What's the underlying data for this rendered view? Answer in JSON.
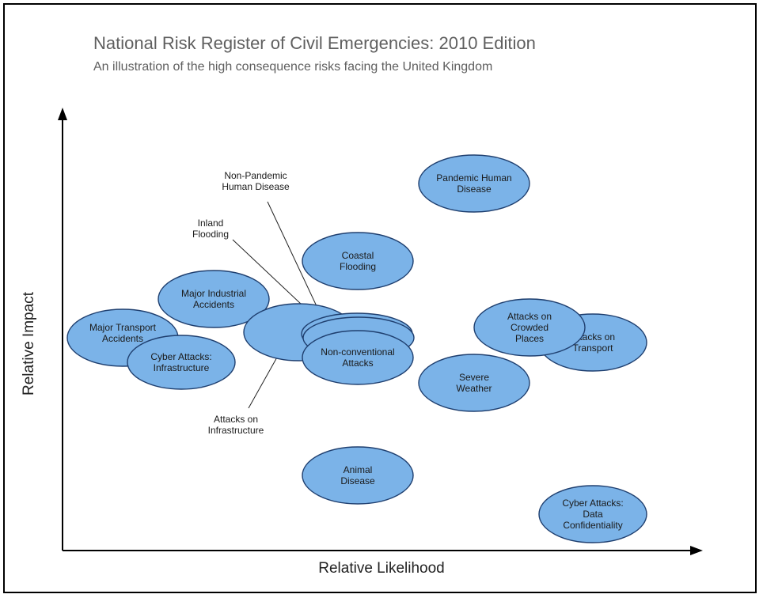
{
  "title": "National Risk Register of Civil Emergencies: 2010 Edition",
  "subtitle": "An illustration of the high consequence risks facing the United Kingdom",
  "axes": {
    "x": "Relative Likelihood",
    "y": "Relative Impact"
  },
  "colors": {
    "bubble_fill": "#7bb3e8",
    "bubble_stroke": "#1f3f6f",
    "text": "#1a1a1a"
  },
  "risks": [
    {
      "id": "pandemic-human-disease",
      "label": [
        "Pandemic Human",
        "Disease"
      ]
    },
    {
      "id": "coastal-flooding",
      "label": [
        "Coastal",
        "Flooding"
      ]
    },
    {
      "id": "major-industrial-accidents",
      "label": [
        "Major Industrial",
        "Accidents"
      ]
    },
    {
      "id": "major-transport-accidents",
      "label": [
        "Major Transport",
        "Accidents"
      ]
    },
    {
      "id": "cyber-attacks-infrastructure",
      "label": [
        "Cyber Attacks:",
        "Infrastructure"
      ]
    },
    {
      "id": "attacks-on-infrastructure",
      "label": []
    },
    {
      "id": "non-pandemic-human-disease",
      "label": []
    },
    {
      "id": "inland-flooding",
      "label": []
    },
    {
      "id": "non-conventional-attacks",
      "label": [
        "Non-conventional",
        "Attacks"
      ]
    },
    {
      "id": "attacks-on-transport",
      "label": [
        "Attacks on",
        "Transport"
      ]
    },
    {
      "id": "attacks-on-crowded-places",
      "label": [
        "Attacks on",
        "Crowded",
        "Places"
      ]
    },
    {
      "id": "severe-weather",
      "label": [
        "Severe",
        "Weather"
      ]
    },
    {
      "id": "animal-disease",
      "label": [
        "Animal",
        "Disease"
      ]
    },
    {
      "id": "cyber-attacks-data-confidentiality",
      "label": [
        "Cyber Attacks:",
        "Data",
        "Confidentiality"
      ]
    }
  ],
  "callouts": [
    {
      "id": "non-pandemic-human-disease",
      "label": [
        "Non-Pandemic",
        "Human Disease"
      ]
    },
    {
      "id": "inland-flooding",
      "label": [
        "Inland",
        "Flooding"
      ]
    },
    {
      "id": "attacks-on-infrastructure",
      "label": [
        "Attacks on",
        "Infrastructure"
      ]
    }
  ]
}
